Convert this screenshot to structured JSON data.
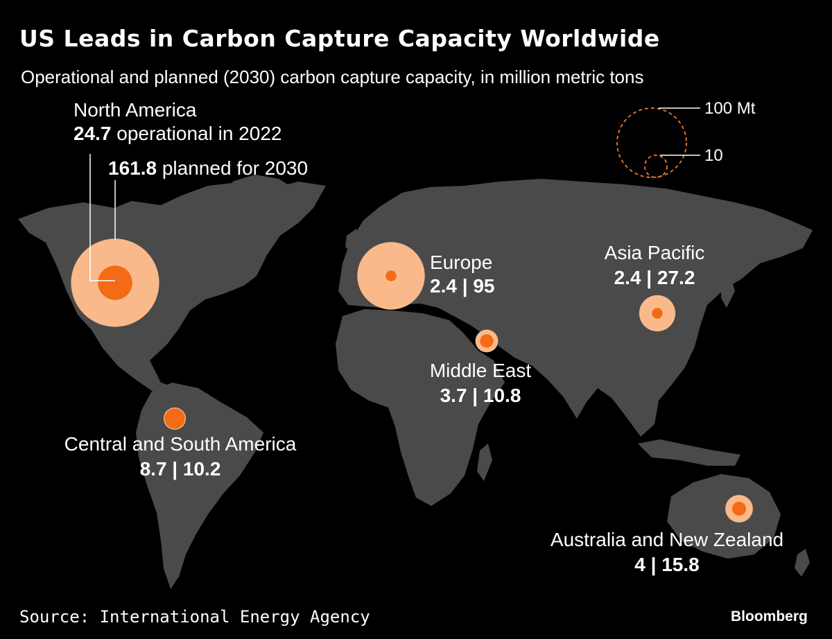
{
  "title": "US Leads in Carbon Capture Capacity Worldwide",
  "subtitle": "Operational and planned (2030) carbon capture capacity, in million metric tons",
  "legend": {
    "large": "100 Mt",
    "small": "10"
  },
  "regions": {
    "north_america": {
      "name": "North America",
      "operational": "24.7",
      "operational_text": " operational in 2022",
      "planned": "161.8",
      "planned_text": " planned for 2030"
    },
    "europe": {
      "name": "Europe",
      "values": "2.4 | 95"
    },
    "asia_pacific": {
      "name": "Asia Pacific",
      "values": "2.4 | 27.2"
    },
    "middle_east": {
      "name": "Middle East",
      "values": "3.7 | 10.8"
    },
    "south_america": {
      "name": "Central and South America",
      "values": "8.7 | 10.2"
    },
    "oceania": {
      "name": "Australia and New Zealand",
      "values": "4 | 15.8"
    }
  },
  "map_data": [
    {
      "region": "North America",
      "operational": 24.7,
      "planned": 161.8
    },
    {
      "region": "Europe",
      "operational": 2.4,
      "planned": 95
    },
    {
      "region": "Asia Pacific",
      "operational": 2.4,
      "planned": 27.2
    },
    {
      "region": "Middle East",
      "operational": 3.7,
      "planned": 10.8
    },
    {
      "region": "Central and South America",
      "operational": 8.7,
      "planned": 10.2
    },
    {
      "region": "Australia and New Zealand",
      "operational": 4,
      "planned": 15.8
    }
  ],
  "colors": {
    "land": "#4a4a4a",
    "planned": "#f9b98b",
    "operational": "#f36b16",
    "legend_stroke": "#f07a2c",
    "background": "#000000"
  },
  "source": "Source: International Energy Agency",
  "brand": "Bloomberg"
}
